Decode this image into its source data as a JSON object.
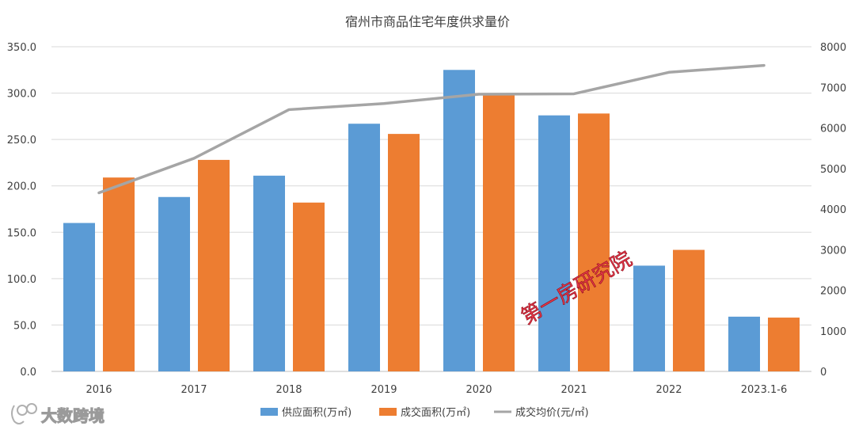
{
  "chart_data": {
    "type": "bar",
    "title": "宿州市商品住宅年度供求量价",
    "categories": [
      "2016",
      "2017",
      "2018",
      "2019",
      "2020",
      "2021",
      "2022",
      "2023.1-6"
    ],
    "series": [
      {
        "name": "供应面积(万㎡)",
        "type": "bar",
        "axis": "left",
        "color": "#5b9bd5",
        "values": [
          160,
          188,
          211,
          267,
          325,
          276,
          114,
          59
        ]
      },
      {
        "name": "成交面积(万㎡)",
        "type": "bar",
        "axis": "left",
        "color": "#ed7d31",
        "values": [
          209,
          228,
          182,
          256,
          299,
          278,
          131,
          58
        ]
      },
      {
        "name": "成交均价(元/㎡)",
        "type": "line",
        "axis": "right",
        "color": "#a5a5a5",
        "values": [
          4400,
          5250,
          6450,
          6600,
          6830,
          6840,
          7370,
          7540
        ]
      }
    ],
    "y_left": {
      "min": 0,
      "max": 350,
      "step": 50,
      "tick_labels": [
        "0.0",
        "50.0",
        "100.0",
        "150.0",
        "200.0",
        "250.0",
        "300.0",
        "350.0"
      ]
    },
    "y_right": {
      "min": 0,
      "max": 8000,
      "step": 1000,
      "tick_labels": [
        "0",
        "1000",
        "2000",
        "3000",
        "4000",
        "5000",
        "6000",
        "7000",
        "8000"
      ]
    },
    "grid": true,
    "legend_position": "bottom"
  },
  "watermark": {
    "text": "第一房研究院"
  },
  "logo": {
    "text": "大数跨境"
  }
}
